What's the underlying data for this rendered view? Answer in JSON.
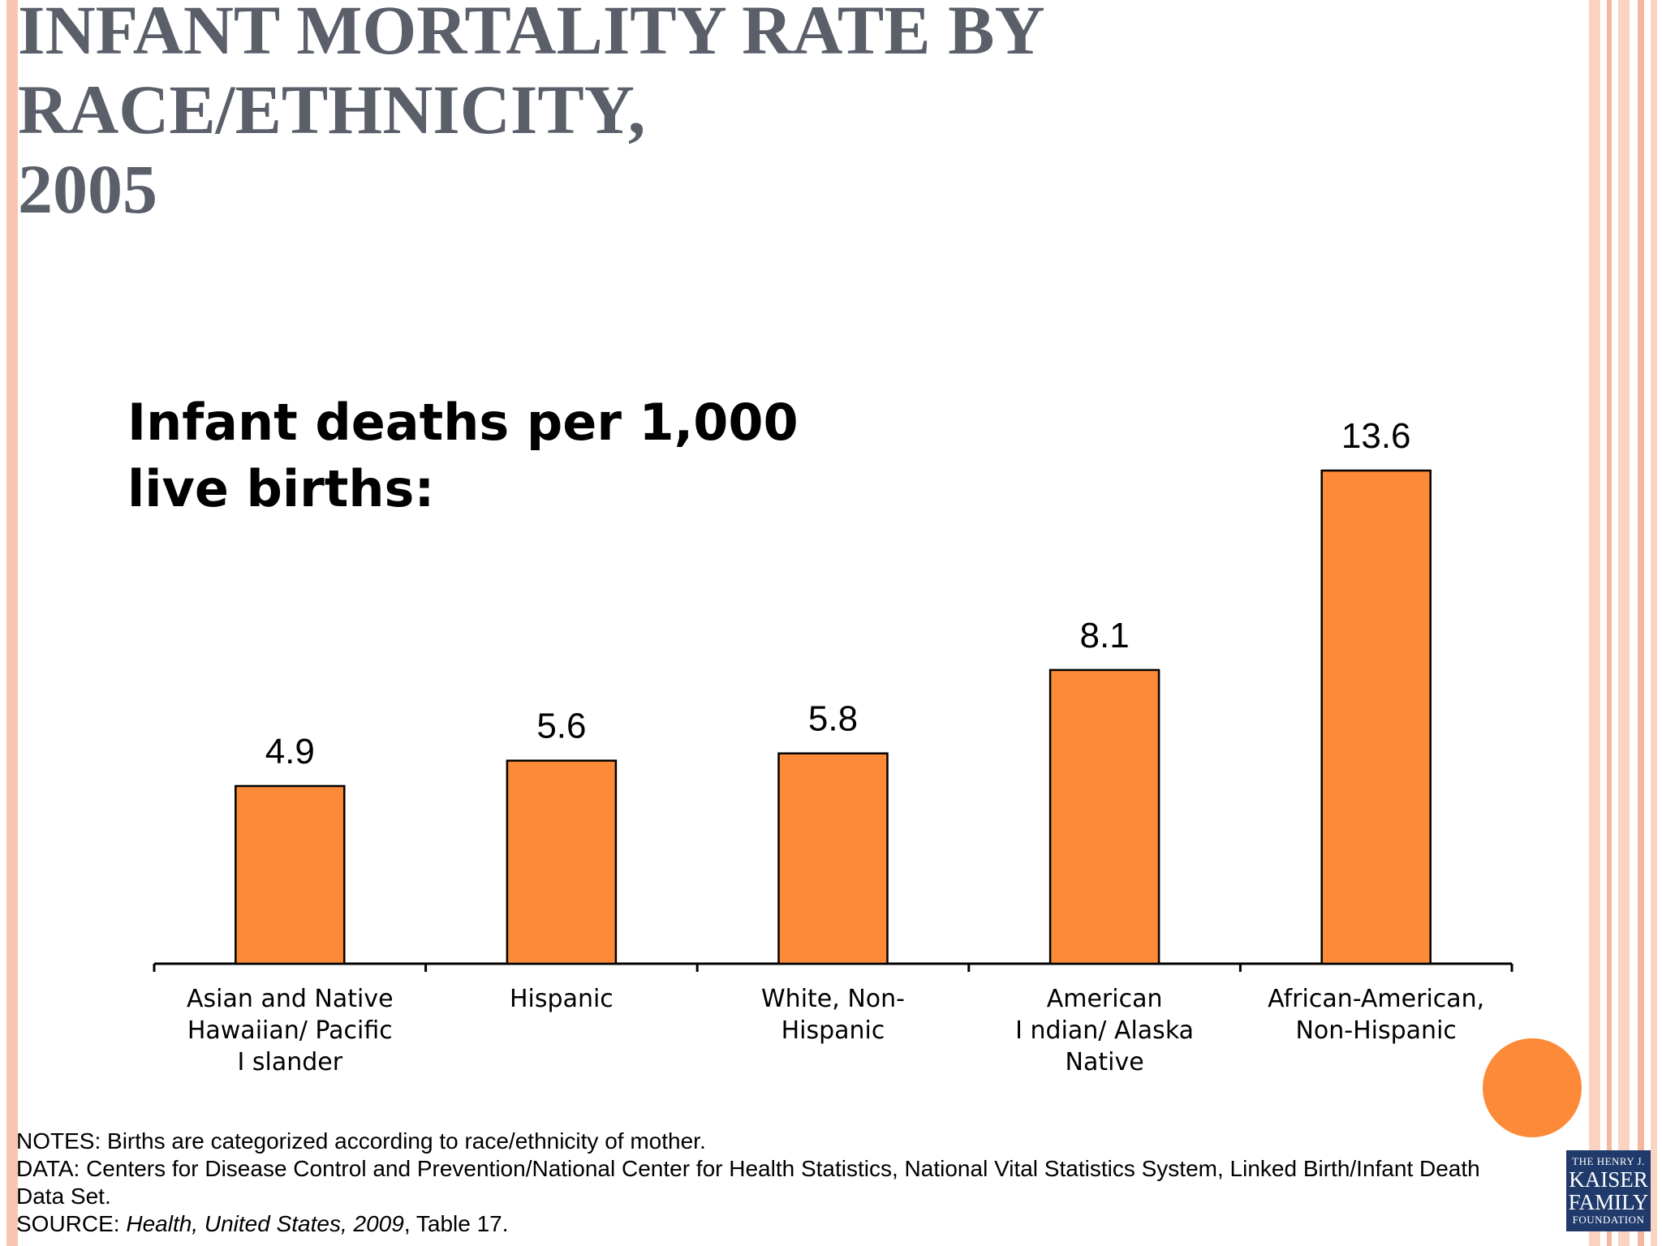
{
  "slide": {
    "title_lines": [
      "INFANT MORTALITY RATE BY",
      "RACE/ETHNICITY,",
      "2005"
    ]
  },
  "chart_data": {
    "type": "bar",
    "title_lines": [
      "Infant deaths per 1,000",
      "live births:"
    ],
    "categories": [
      [
        "Asian and Native",
        "Hawaiian/ Pacific",
        "I slander"
      ],
      [
        "Hispanic"
      ],
      [
        "White, Non-",
        "Hispanic"
      ],
      [
        "American",
        "I ndian/ Alaska",
        "Native"
      ],
      [
        "African-American,",
        "Non-Hispanic"
      ]
    ],
    "values": [
      4.9,
      5.6,
      5.8,
      8.1,
      13.6
    ],
    "value_labels": [
      "4.9",
      "5.6",
      "5.8",
      "8.1",
      "13.6"
    ],
    "ylim": [
      0,
      15
    ],
    "bar_color": "#fc8a38",
    "grid": false,
    "legend": "none"
  },
  "notes": {
    "lines": [
      {
        "plain": "NOTES: Births are categorized according to race/ethnicity of mother."
      },
      {
        "plain": "DATA: Centers for Disease Control and Prevention/National Center for Health Statistics, National Vital Statistics System, Linked Birth/Infant Death"
      },
      {
        "plain": "Data Set."
      },
      {
        "prefix": "SOURCE: ",
        "italic": "Health, United States, 2009",
        "suffix": ", Table 17."
      }
    ]
  },
  "logo": {
    "line1": "THE HENRY J.",
    "line2": "KAISER",
    "line3": "FAMILY",
    "line4": "FOUNDATION"
  },
  "colors": {
    "title": "#5a5f6a",
    "accent": "#fc8a38",
    "stripe_light": "#fcd9c9",
    "stripe_mid": "#f6b8a0"
  }
}
